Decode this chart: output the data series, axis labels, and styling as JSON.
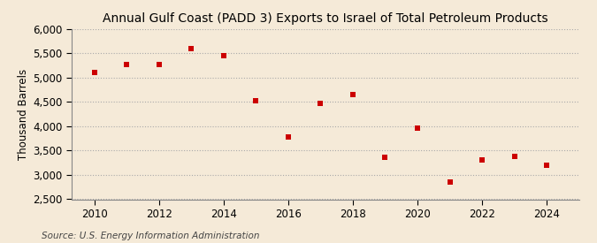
{
  "title": "Annual Gulf Coast (PADD 3) Exports to Israel of Total Petroleum Products",
  "ylabel": "Thousand Barrels",
  "source": "Source: U.S. Energy Information Administration",
  "background_color": "#f5ead8",
  "years": [
    2010,
    2011,
    2012,
    2013,
    2014,
    2015,
    2016,
    2017,
    2018,
    2019,
    2020,
    2021,
    2022,
    2023,
    2024
  ],
  "values": [
    5100,
    5270,
    5270,
    5600,
    5460,
    4530,
    3780,
    4480,
    4650,
    3370,
    3960,
    2860,
    3300,
    3380,
    3200
  ],
  "marker_color": "#cc0000",
  "marker": "s",
  "marker_size": 4,
  "ylim": [
    2500,
    6000
  ],
  "yticks": [
    2500,
    3000,
    3500,
    4000,
    4500,
    5000,
    5500,
    6000
  ],
  "xlim": [
    2009.3,
    2025.0
  ],
  "xticks": [
    2010,
    2012,
    2014,
    2016,
    2018,
    2020,
    2022,
    2024
  ],
  "grid_color": "#aaaaaa",
  "title_fontsize": 10,
  "axis_fontsize": 8.5,
  "source_fontsize": 7.5
}
